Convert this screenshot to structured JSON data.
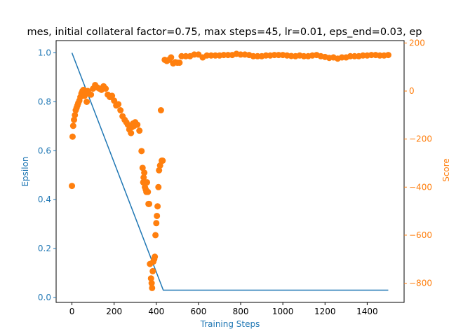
{
  "chart_data": {
    "type": "line+scatter",
    "title": "mes, initial collateral factor=0.75, max steps=45, lr=0.01, eps_end=0.03, ep",
    "xlabel": "Training Steps",
    "ylabel_left": "Epsilon",
    "ylabel_right": "Score",
    "xlim": [
      -75,
      1575
    ],
    "ylim_left": [
      -0.02,
      1.05
    ],
    "ylim_right": [
      -880,
      210
    ],
    "x_ticks": [
      "0",
      "200",
      "400",
      "600",
      "800",
      "1000",
      "1200",
      "1400"
    ],
    "y_ticks_left": [
      "0.0",
      "0.2",
      "0.4",
      "0.6",
      "0.8",
      "1.0"
    ],
    "y_ticks_right": [
      "200",
      "0",
      "−200",
      "−400",
      "−600",
      "−800"
    ],
    "grid": false,
    "colors": {
      "epsilon": "#1f77b4",
      "score": "#ff7f0e",
      "axes": "#000000"
    },
    "series": [
      {
        "name": "",
        "axis": "left",
        "kind": "line",
        "x": [
          0,
          433,
          1500
        ],
        "y": [
          1.0,
          0.03,
          0.03
        ]
      },
      {
        "name": "",
        "axis": "right",
        "kind": "scatter",
        "x": [
          0,
          3,
          6,
          10,
          14,
          18,
          22,
          26,
          30,
          35,
          40,
          45,
          50,
          55,
          60,
          65,
          70,
          75,
          80,
          90,
          100,
          110,
          120,
          130,
          140,
          150,
          160,
          170,
          180,
          190,
          200,
          210,
          220,
          230,
          240,
          250,
          258,
          265,
          272,
          280,
          285,
          290,
          295,
          300,
          310,
          320,
          330,
          335,
          338,
          340,
          343,
          346,
          350,
          353,
          356,
          360,
          363,
          366,
          370,
          375,
          378,
          380,
          383,
          386,
          390,
          393,
          396,
          400,
          403,
          406,
          410,
          413,
          418,
          422,
          426,
          430,
          440,
          450,
          460,
          470,
          480,
          490,
          500,
          510,
          520,
          540,
          560,
          580,
          600,
          620,
          640,
          660,
          680,
          700,
          720,
          740,
          760,
          780,
          800,
          820,
          840,
          860,
          880,
          900,
          920,
          940,
          960,
          980,
          1000,
          1020,
          1040,
          1060,
          1080,
          1100,
          1120,
          1140,
          1160,
          1180,
          1200,
          1220,
          1240,
          1260,
          1280,
          1300,
          1320,
          1340,
          1360,
          1380,
          1400,
          1420,
          1440,
          1460,
          1480,
          1500
        ],
        "y": [
          -395,
          -190,
          -145,
          -120,
          -100,
          -80,
          -70,
          -60,
          -50,
          -40,
          -25,
          -10,
          0,
          5,
          -20,
          -5,
          -45,
          0,
          -10,
          -15,
          10,
          25,
          15,
          10,
          5,
          20,
          10,
          -15,
          -25,
          -20,
          -40,
          -60,
          -55,
          -80,
          -105,
          -120,
          -130,
          -140,
          -160,
          -175,
          -150,
          -135,
          -145,
          -130,
          -140,
          -165,
          -250,
          -320,
          -380,
          -360,
          -340,
          -400,
          -410,
          -420,
          -380,
          -420,
          -470,
          -470,
          -720,
          -780,
          -800,
          -820,
          -750,
          -710,
          -700,
          -690,
          -600,
          -550,
          -520,
          -480,
          -400,
          -330,
          -310,
          -80,
          -290,
          -290,
          130,
          125,
          130,
          140,
          115,
          120,
          118,
          118,
          145,
          145,
          145,
          152,
          152,
          140,
          148,
          148,
          148,
          148,
          150,
          150,
          150,
          155,
          152,
          152,
          150,
          145,
          145,
          145,
          148,
          148,
          150,
          150,
          150,
          148,
          146,
          145,
          148,
          145,
          145,
          148,
          150,
          145,
          142,
          138,
          140,
          135,
          140,
          140,
          145,
          145,
          145,
          148,
          148,
          150,
          150,
          148,
          148,
          150
        ]
      }
    ]
  }
}
